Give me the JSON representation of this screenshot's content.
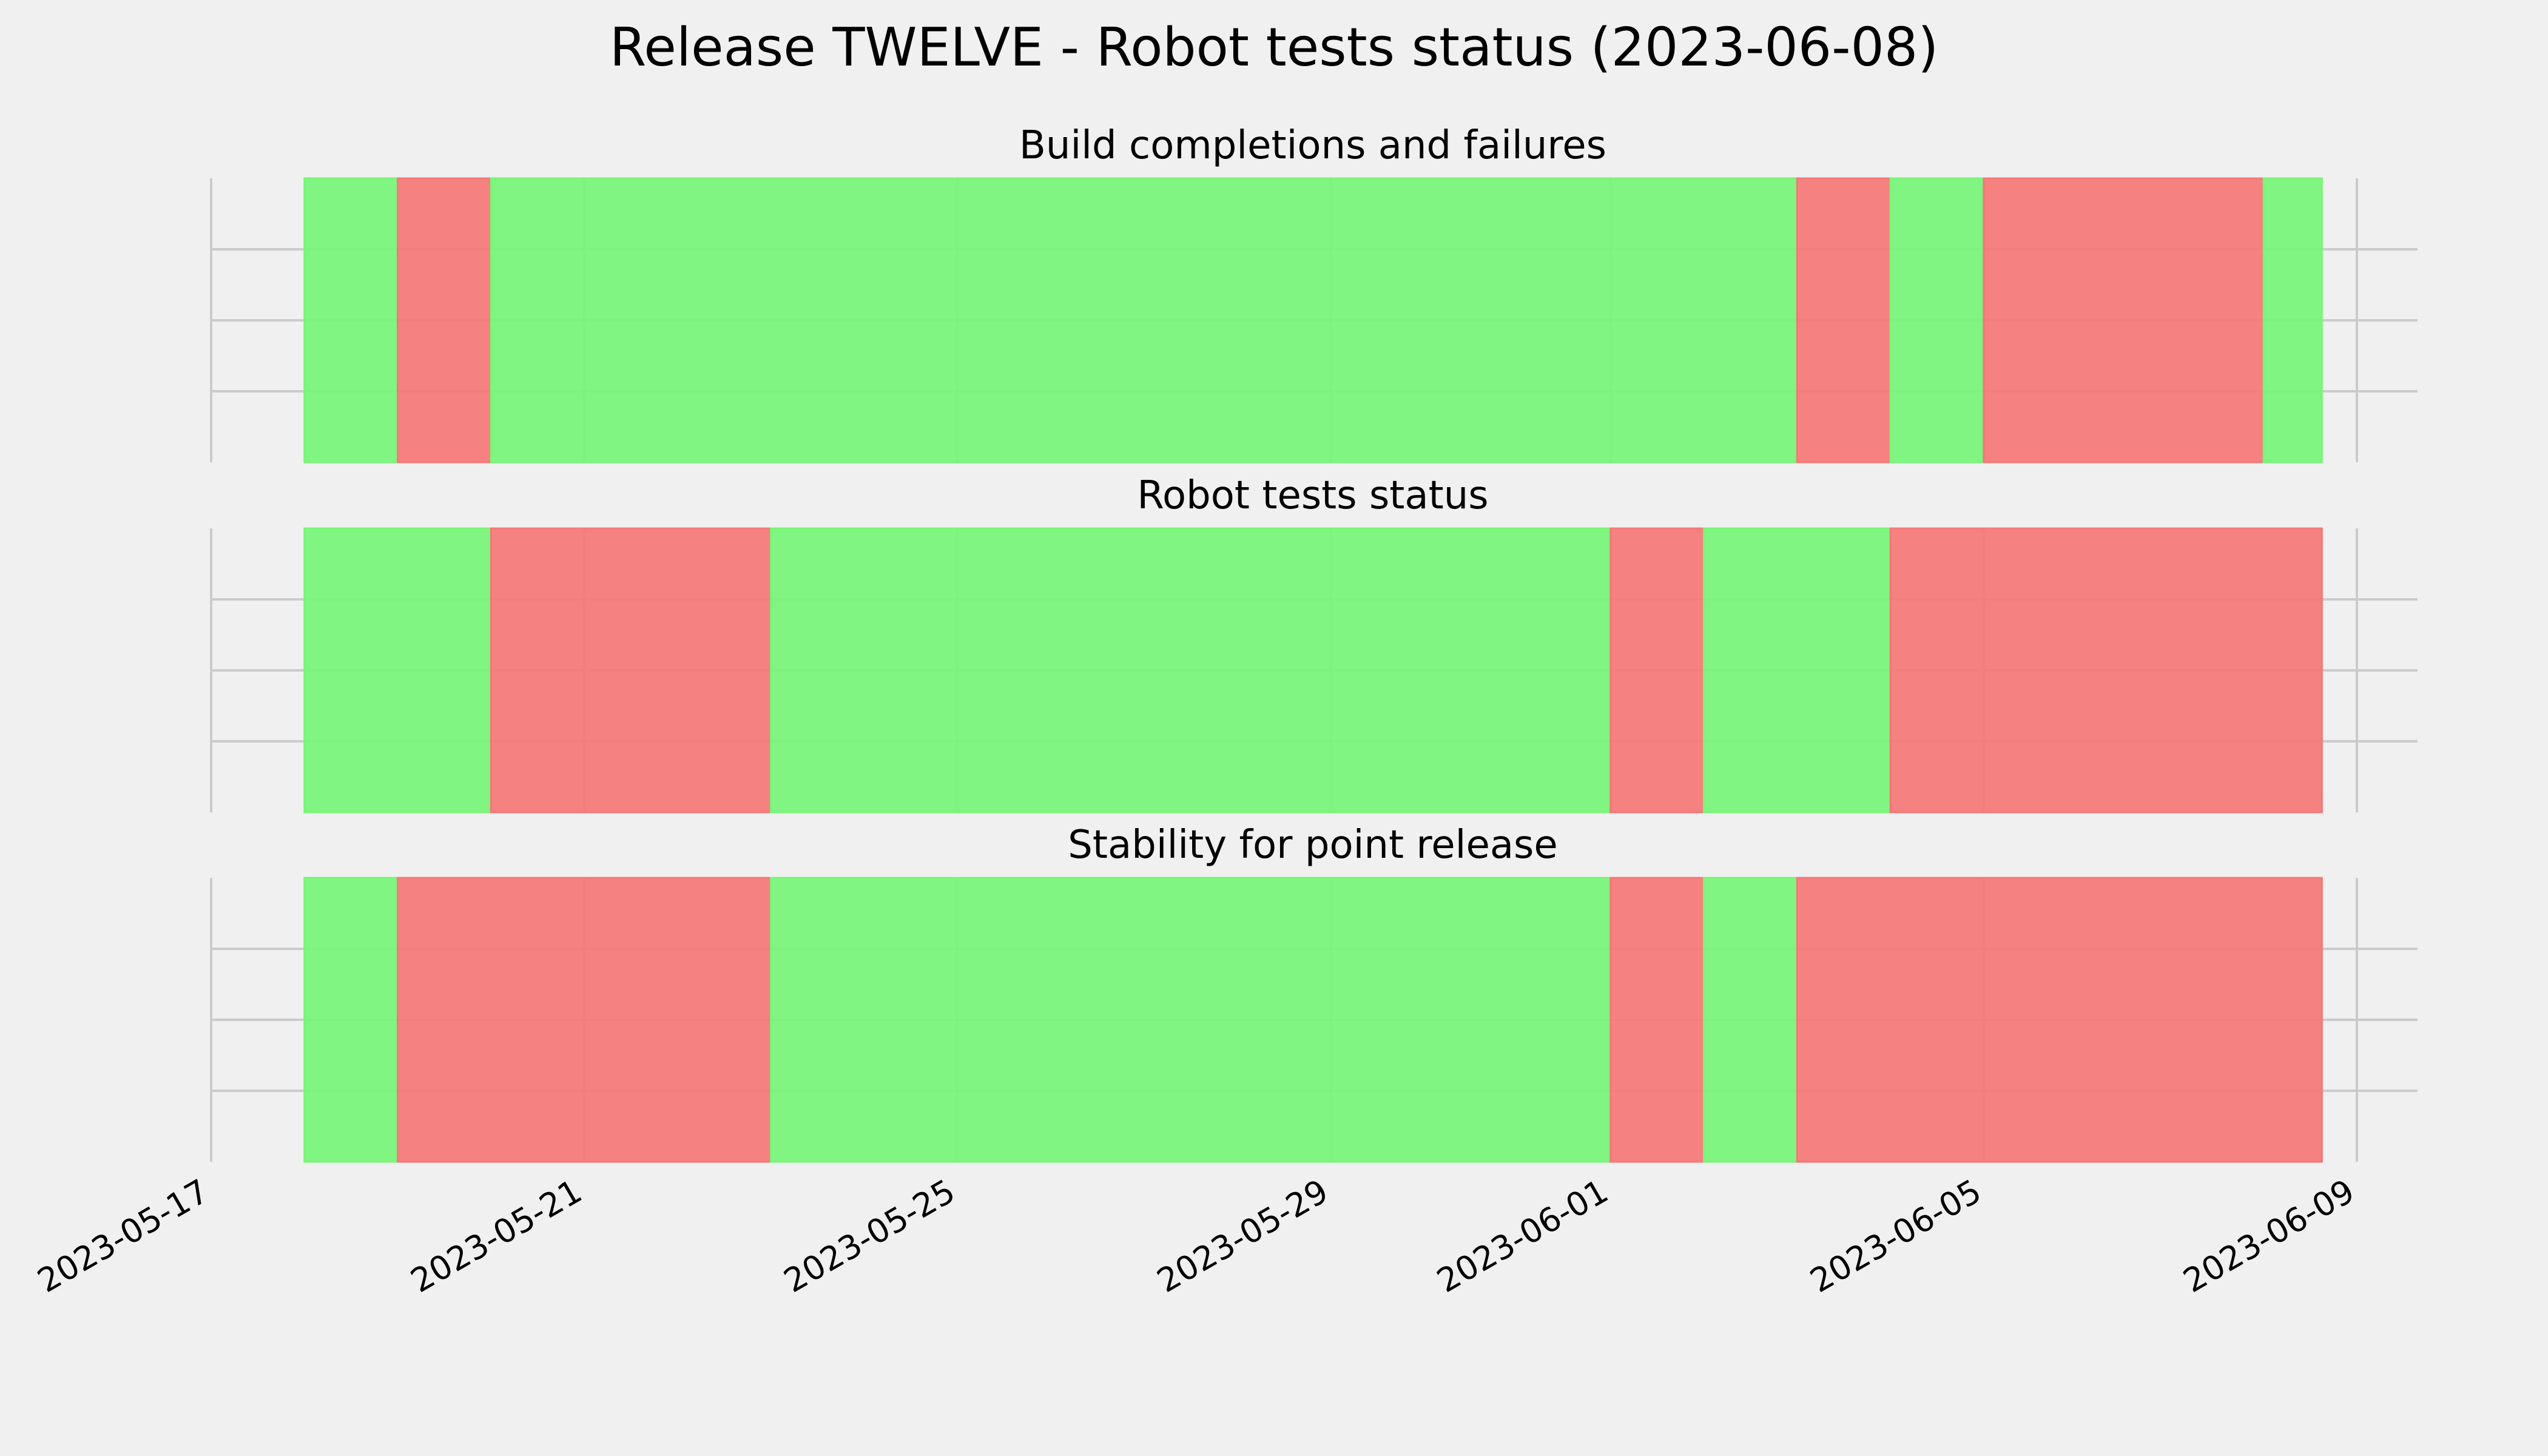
{
  "chart_data": {
    "type": "timeline",
    "title": "Release TWELVE - Robot tests status (2023-06-08)",
    "x_ticks": [
      "2023-05-17",
      "2023-05-21",
      "2023-05-25",
      "2023-05-29",
      "2023-06-01",
      "2023-06-05",
      "2023-06-09"
    ],
    "grid": true,
    "colors": {
      "pass": "#77f577",
      "fail": "#f57777",
      "background": "#f0f0f0",
      "grid": "#cbcbcb"
    },
    "panels": [
      {
        "title": "Build completions and failures",
        "segments": [
          {
            "start": "2023-05-18",
            "end": "2023-05-19",
            "status": "pass"
          },
          {
            "start": "2023-05-19",
            "end": "2023-05-20",
            "status": "fail"
          },
          {
            "start": "2023-05-20",
            "end": "2023-06-03",
            "status": "pass"
          },
          {
            "start": "2023-06-03",
            "end": "2023-06-04",
            "status": "fail"
          },
          {
            "start": "2023-06-04",
            "end": "2023-06-05",
            "status": "pass"
          },
          {
            "start": "2023-06-05",
            "end": "2023-06-08",
            "status": "fail"
          },
          {
            "start": "2023-06-08",
            "end": "2023-06-08T15:00",
            "status": "pass"
          }
        ]
      },
      {
        "title": "Robot tests status",
        "segments": [
          {
            "start": "2023-05-18",
            "end": "2023-05-20",
            "status": "pass"
          },
          {
            "start": "2023-05-20",
            "end": "2023-05-23",
            "status": "fail"
          },
          {
            "start": "2023-05-23",
            "end": "2023-06-01",
            "status": "pass"
          },
          {
            "start": "2023-06-01",
            "end": "2023-06-02",
            "status": "fail"
          },
          {
            "start": "2023-06-02",
            "end": "2023-06-04",
            "status": "pass"
          },
          {
            "start": "2023-06-04",
            "end": "2023-06-08T15:00",
            "status": "fail"
          }
        ]
      },
      {
        "title": "Stability for point release",
        "segments": [
          {
            "start": "2023-05-18",
            "end": "2023-05-19",
            "status": "pass"
          },
          {
            "start": "2023-05-19",
            "end": "2023-05-23",
            "status": "fail"
          },
          {
            "start": "2023-05-23",
            "end": "2023-06-01",
            "status": "pass"
          },
          {
            "start": "2023-06-01",
            "end": "2023-06-02",
            "status": "fail"
          },
          {
            "start": "2023-06-02",
            "end": "2023-06-03",
            "status": "pass"
          },
          {
            "start": "2023-06-03",
            "end": "2023-06-08T15:00",
            "status": "fail"
          }
        ]
      }
    ]
  }
}
